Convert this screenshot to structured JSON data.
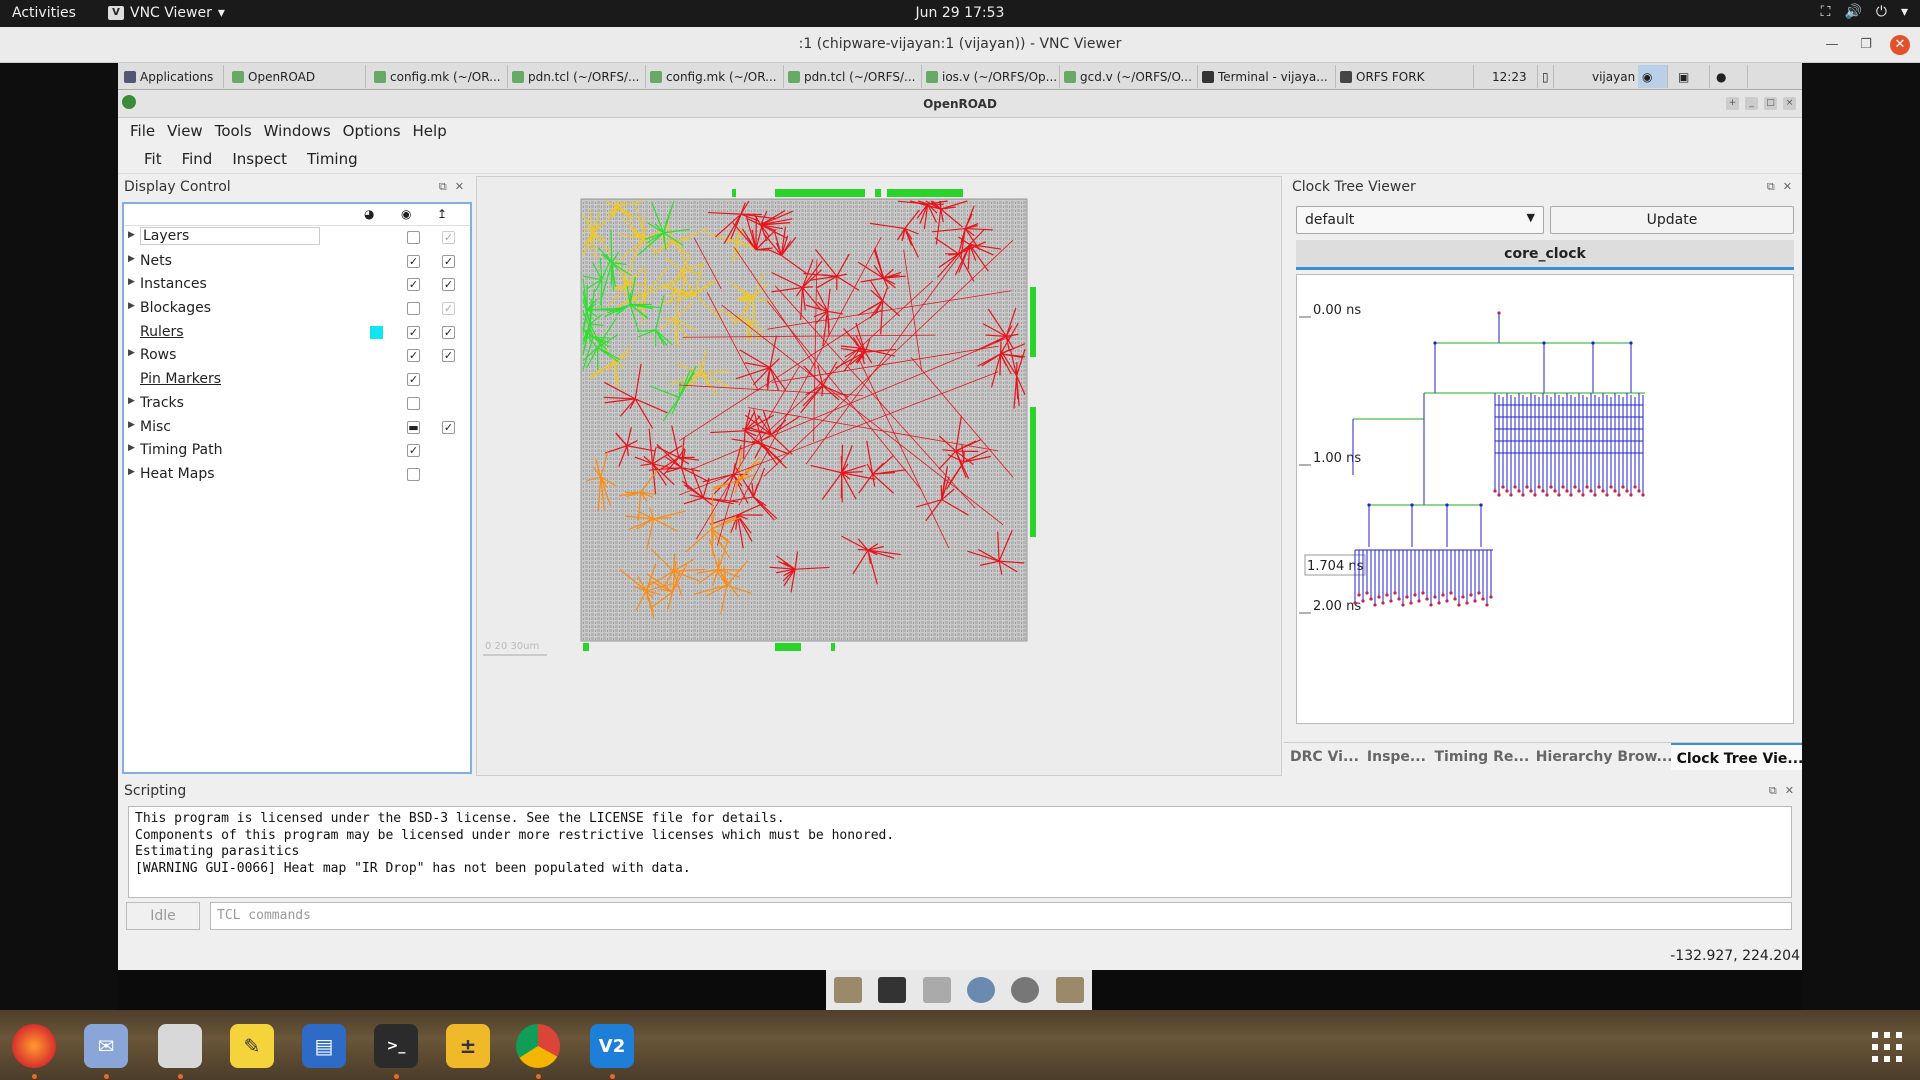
{
  "gnome": {
    "activities": "Activities",
    "app_name": "VNC Viewer",
    "clock": "Jun 29  17:53"
  },
  "vnc": {
    "title": ":1 (chipware-vijayan:1 (vijayan)) - VNC Viewer"
  },
  "xfce_taskbar": {
    "items": [
      {
        "label": "Applications"
      },
      {
        "label": "OpenROAD"
      },
      {
        "label": "config.mk (~/OR..."
      },
      {
        "label": "pdn.tcl (~/ORFS/..."
      },
      {
        "label": "config.mk (~/OR..."
      },
      {
        "label": "pdn.tcl (~/ORFS/..."
      },
      {
        "label": "ios.v (~/ORFS/Op..."
      },
      {
        "label": "gcd.v (~/ORFS/O..."
      },
      {
        "label": "Terminal - vijaya..."
      },
      {
        "label": "ORFS FORK"
      }
    ],
    "time": "12:23",
    "user": "vijayan"
  },
  "openroad": {
    "title": "OpenROAD",
    "menu": [
      "File",
      "View",
      "Tools",
      "Windows",
      "Options",
      "Help"
    ],
    "toolbar": [
      "Fit",
      "Find",
      "Inspect",
      "Timing"
    ]
  },
  "display_control": {
    "title": "Display Control",
    "rows": [
      {
        "label": "Layers",
        "expandable": true,
        "link": false,
        "visible": "off",
        "selectable": "on-disabled"
      },
      {
        "label": "Nets",
        "expandable": true,
        "link": false,
        "visible": "on",
        "selectable": "on"
      },
      {
        "label": "Instances",
        "expandable": true,
        "link": false,
        "visible": "on",
        "selectable": "on"
      },
      {
        "label": "Blockages",
        "expandable": true,
        "link": false,
        "visible": "off",
        "selectable": "on-disabled"
      },
      {
        "label": "Rulers",
        "expandable": false,
        "link": true,
        "visible": "on",
        "selectable": "on",
        "swatch": "#10e6f0"
      },
      {
        "label": "Rows",
        "expandable": true,
        "link": false,
        "visible": "on",
        "selectable": "on"
      },
      {
        "label": "Pin Markers",
        "expandable": false,
        "link": true,
        "visible": "on",
        "selectable": "none"
      },
      {
        "label": "Tracks",
        "expandable": true,
        "link": false,
        "visible": "off",
        "selectable": "none"
      },
      {
        "label": "Misc",
        "expandable": true,
        "link": false,
        "visible": "partial",
        "selectable": "on"
      },
      {
        "label": "Timing Path",
        "expandable": true,
        "link": false,
        "visible": "on",
        "selectable": "none"
      },
      {
        "label": "Heat Maps",
        "expandable": true,
        "link": false,
        "visible": "off",
        "selectable": "none"
      }
    ]
  },
  "clock_tree": {
    "title": "Clock Tree Viewer",
    "selected_corner": "default",
    "update_label": "Update",
    "clock_tab": "core_clock",
    "time_labels": [
      "0.00 ns",
      "1.00 ns",
      "1.704 ns",
      "2.00 ns"
    ]
  },
  "bottom_tabs": [
    "DRC Vi...",
    "Inspe...",
    "Timing Re...",
    "Hierarchy Brow...",
    "Clock Tree Vie..."
  ],
  "scripting": {
    "title": "Scripting",
    "lines": [
      "This program is licensed under the BSD-3 license. See the LICENSE file for details.",
      "Components of this program may be licensed under more restrictive licenses which must be honored.",
      "Estimating parasitics",
      "[WARNING GUI-0066] Heat map \"IR Drop\" has not been populated with data."
    ],
    "status_button": "Idle",
    "input_placeholder": "TCL commands",
    "input_value": ""
  },
  "status_coords": "-132.927, 224.204",
  "colors": {
    "accent": "#3d8fd4",
    "net_red": "#e8141c",
    "net_yellow": "#f0c81e",
    "net_green": "#2ee02e",
    "net_orange": "#ff8c10",
    "tree_blue": "#2222cc",
    "tree_green": "#22aa22"
  }
}
